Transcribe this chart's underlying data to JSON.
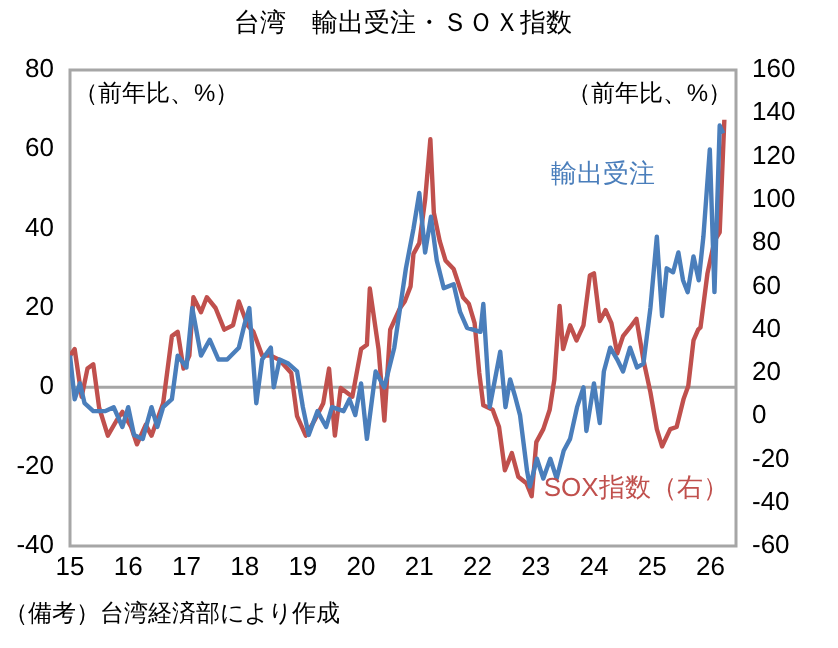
{
  "chart_data": {
    "type": "line",
    "title": "台湾　輸出受注・ＳＯＸ指数",
    "ylabel": "（前年比、%）",
    "y2label": "（前年比、%）",
    "xlim": [
      15,
      26.44
    ],
    "xticks": [
      15,
      16,
      17,
      18,
      19,
      20,
      21,
      22,
      23,
      24,
      25,
      26
    ],
    "ylim": [
      -40,
      80
    ],
    "yticks": [
      -40,
      -20,
      0,
      20,
      40,
      60,
      80
    ],
    "y2lim": [
      -60,
      160
    ],
    "y2ticks": [
      -60,
      -40,
      -20,
      0,
      20,
      40,
      60,
      80,
      100,
      120,
      140,
      160
    ],
    "grid": false,
    "legend": false,
    "ref_lines": [
      {
        "axis": "y",
        "value": 0,
        "color": "#a6a6a6"
      }
    ],
    "annotations": [
      "（備考）台湾経済部により作成"
    ],
    "series": [
      {
        "name": "輸出受注",
        "color": "#4a7ebb",
        "x": [
          15.0,
          15.08,
          15.17,
          15.25,
          15.4,
          15.6,
          15.75,
          15.9,
          16.0,
          16.1,
          16.25,
          16.4,
          16.5,
          16.6,
          16.75,
          16.85,
          17.0,
          17.1,
          17.25,
          17.4,
          17.55,
          17.7,
          17.9,
          18.0,
          18.08,
          18.2,
          18.3,
          18.45,
          18.5,
          18.6,
          18.75,
          18.9,
          19.0,
          19.1,
          19.25,
          19.4,
          19.5,
          19.7,
          19.8,
          19.9,
          20.0,
          20.1,
          20.25,
          20.4,
          20.57,
          20.77,
          20.9,
          21.0,
          21.1,
          21.2,
          21.3,
          21.42,
          21.59,
          21.7,
          21.82,
          22.05,
          22.1,
          22.21,
          22.39,
          22.48,
          22.56,
          22.64,
          22.73,
          22.85,
          22.9,
          23.02,
          23.13,
          23.25,
          23.36,
          23.48,
          23.59,
          23.71,
          23.82,
          23.87,
          24.0,
          24.1,
          24.17,
          24.28,
          24.4,
          24.5,
          24.62,
          24.74,
          24.85,
          24.97,
          25.08,
          25.17,
          25.25,
          25.36,
          25.45,
          25.53,
          25.61,
          25.71,
          25.8,
          25.88,
          25.99,
          26.07,
          26.16,
          26.22
        ],
        "values": [
          8,
          -3,
          1,
          -4,
          -6,
          -6,
          -5,
          -10,
          -5,
          -12,
          -13,
          -5,
          -10,
          -5,
          -3,
          8,
          5,
          20,
          8,
          12,
          7,
          7,
          10,
          16,
          20,
          -4,
          7,
          10,
          0,
          7,
          6,
          4,
          -5,
          -12,
          -6,
          -10,
          -5,
          -6,
          -3,
          -7,
          1,
          -13,
          4,
          0,
          10,
          30,
          40,
          49,
          34,
          43,
          32,
          25,
          26,
          19,
          15,
          14,
          21,
          -5,
          9,
          -5,
          2,
          -2,
          -7,
          -21,
          -25,
          -18,
          -23,
          -18,
          -23,
          -16,
          -13,
          -5,
          0,
          -11,
          1,
          -9,
          4,
          10,
          7,
          4,
          10,
          5,
          6,
          20,
          38,
          18,
          30,
          29,
          34,
          27,
          24,
          33,
          27,
          38,
          60,
          24,
          66,
          64
        ]
      },
      {
        "name": "SOX指数（右）",
        "color": "#c0504d",
        "axis": "y2",
        "x": [
          15.0,
          15.08,
          15.2,
          15.3,
          15.4,
          15.5,
          15.65,
          15.8,
          15.9,
          16.05,
          16.15,
          16.3,
          16.4,
          16.6,
          16.75,
          16.85,
          16.95,
          17.05,
          17.12,
          17.25,
          17.35,
          17.5,
          17.65,
          17.8,
          17.9,
          18.05,
          18.15,
          18.3,
          18.45,
          18.6,
          18.8,
          18.9,
          19.05,
          19.2,
          19.35,
          19.45,
          19.55,
          19.65,
          19.85,
          20.0,
          20.1,
          20.15,
          20.3,
          20.4,
          20.5,
          20.67,
          20.75,
          20.85,
          20.9,
          21.0,
          21.1,
          21.19,
          21.25,
          21.35,
          21.45,
          21.59,
          21.75,
          21.85,
          21.95,
          22.03,
          22.1,
          22.26,
          22.37,
          22.47,
          22.59,
          22.7,
          22.84,
          22.93,
          23.01,
          23.13,
          23.24,
          23.32,
          23.41,
          23.47,
          23.59,
          23.7,
          23.82,
          23.93,
          24.0,
          24.1,
          24.2,
          24.3,
          24.4,
          24.5,
          24.62,
          24.73,
          24.85,
          24.97,
          25.08,
          25.17,
          25.31,
          25.42,
          25.54,
          25.62,
          25.71,
          25.79,
          25.83,
          25.95,
          26.07,
          26.16,
          26.24
        ],
        "values": [
          28,
          31,
          9,
          22,
          24,
          4,
          -9,
          -2,
          2,
          -5,
          -13,
          -4,
          -9,
          6,
          37,
          39,
          22,
          28,
          55,
          48,
          55,
          50,
          40,
          42,
          53,
          42,
          39,
          28,
          28,
          26,
          20,
          0,
          -9,
          -2,
          6,
          22,
          -9,
          13,
          9,
          31,
          33,
          59,
          31,
          -2,
          40,
          50,
          53,
          60,
          75,
          80,
          100,
          128,
          94,
          81,
          72,
          68,
          55,
          52,
          43,
          20,
          5,
          3,
          -5,
          -25,
          -17,
          -28,
          -31,
          -37,
          -12,
          -6,
          3,
          17,
          51,
          31,
          42,
          35,
          42,
          65,
          66,
          44,
          49,
          43,
          29,
          37,
          41,
          45,
          26,
          11,
          -6,
          -14,
          -6,
          -5,
          8,
          14,
          35,
          40,
          41,
          66,
          81,
          85,
          137
        ]
      }
    ]
  }
}
